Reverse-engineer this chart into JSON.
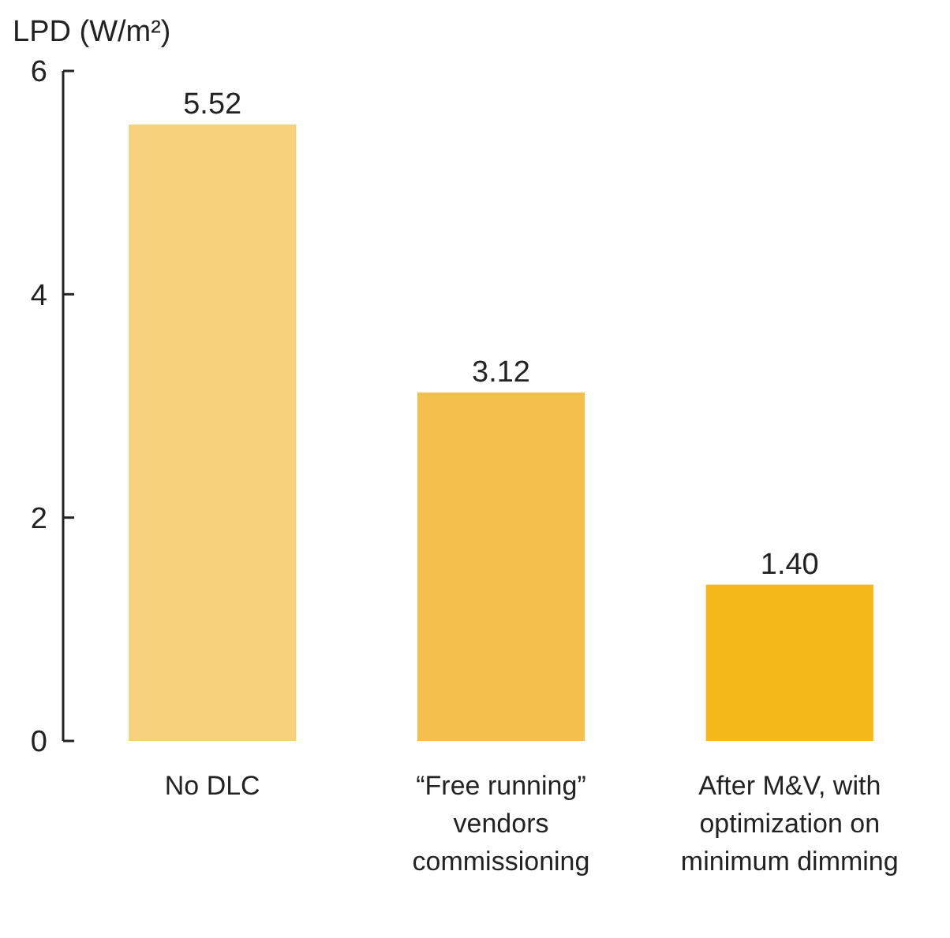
{
  "chart_data": {
    "type": "bar",
    "ylabel": "LPD (W/m²)",
    "categories": [
      "No DLC",
      "“Free running” vendors commissioning",
      "After M&V, with optimization on minimum dimming"
    ],
    "values": [
      5.52,
      3.12,
      1.4
    ],
    "colors": [
      "#f6d07a",
      "#f4bf4c",
      "#f4b81a"
    ],
    "value_labels": [
      "5.52",
      "3.12",
      "1.40"
    ],
    "ylim": [
      0,
      6
    ],
    "yticks": [
      0,
      2,
      4,
      6
    ]
  }
}
